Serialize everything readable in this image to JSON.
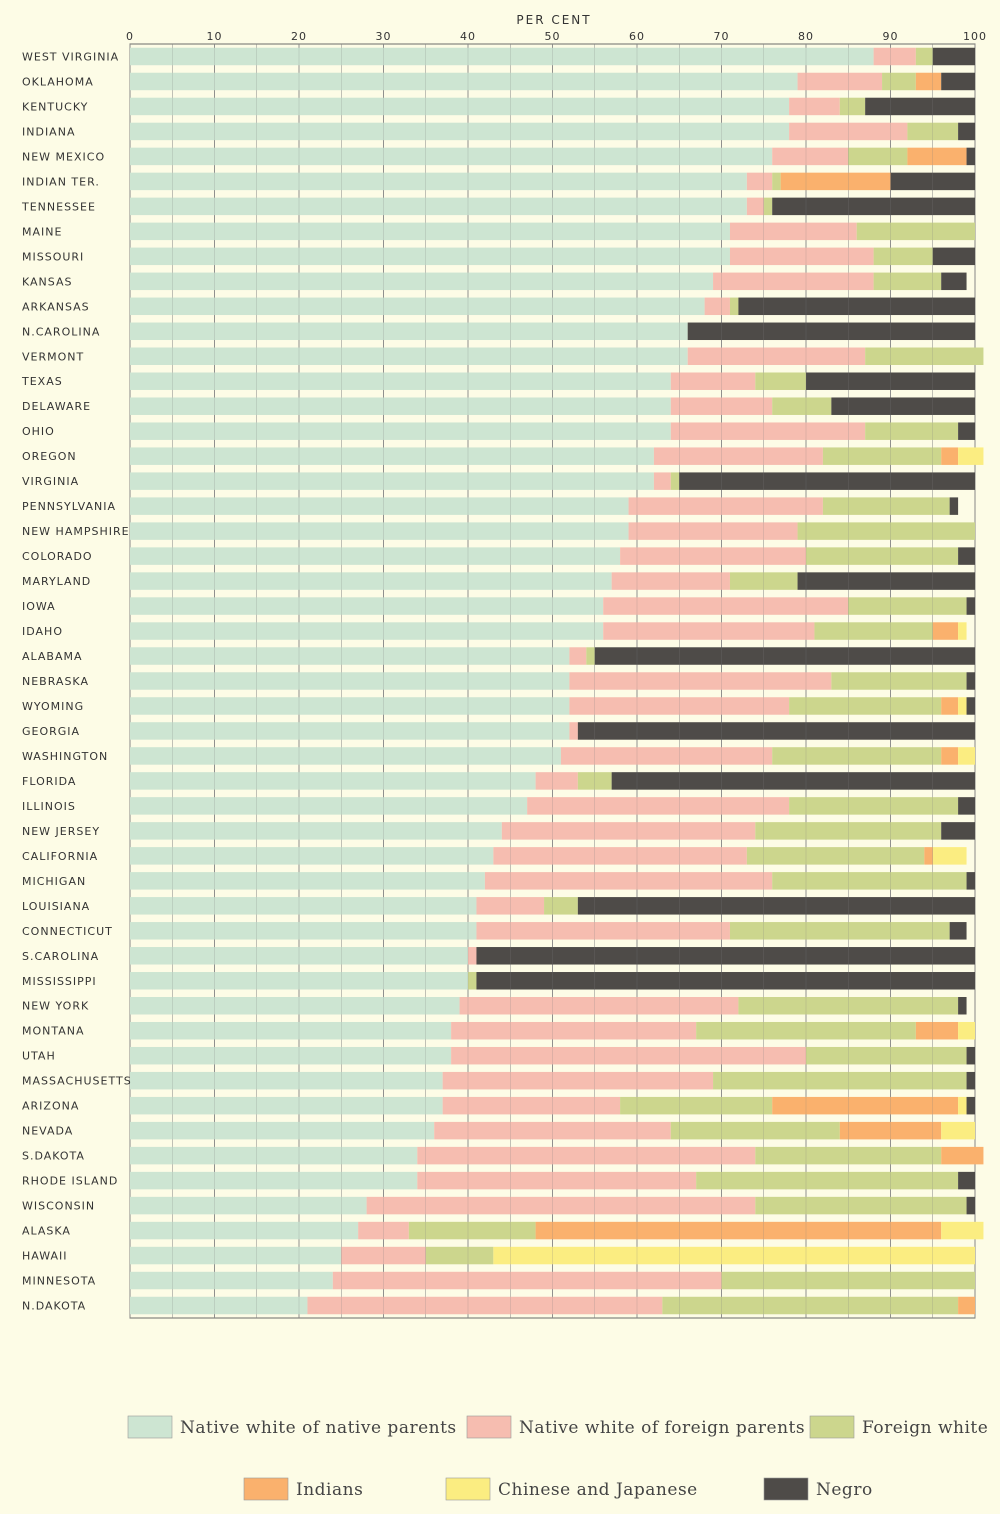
{
  "chart_data": {
    "type": "bar",
    "orientation": "horizontal",
    "stacked": true,
    "xlabel": "PER CENT",
    "xlim": [
      0,
      100
    ],
    "xticks": [
      "0",
      "10",
      "20",
      "30",
      "40",
      "50",
      "60",
      "70",
      "80",
      "90",
      "100"
    ],
    "grid": true,
    "legend_position": "bottom",
    "categories": [
      "WEST VIRGINIA",
      "OKLAHOMA",
      "KENTUCKY",
      "INDIANA",
      "NEW MEXICO",
      "INDIAN TER.",
      "TENNESSEE",
      "MAINE",
      "MISSOURI",
      "KANSAS",
      "ARKANSAS",
      "N.CAROLINA",
      "VERMONT",
      "TEXAS",
      "DELAWARE",
      "OHIO",
      "OREGON",
      "VIRGINIA",
      "PENNSYLVANIA",
      "NEW HAMPSHIRE",
      "COLORADO",
      "MARYLAND",
      "IOWA",
      "IDAHO",
      "ALABAMA",
      "NEBRASKA",
      "WYOMING",
      "GEORGIA",
      "WASHINGTON",
      "FLORIDA",
      "ILLINOIS",
      "NEW JERSEY",
      "CALIFORNIA",
      "MICHIGAN",
      "LOUISIANA",
      "CONNECTICUT",
      "S.CAROLINA",
      "MISSISSIPPI",
      "NEW YORK",
      "MONTANA",
      "UTAH",
      "MASSACHUSETTS",
      "ARIZONA",
      "NEVADA",
      "S.DAKOTA",
      "RHODE ISLAND",
      "WISCONSIN",
      "ALASKA",
      "HAWAII",
      "MINNESOTA",
      "N.DAKOTA"
    ],
    "series": [
      {
        "name": "Native white of native parents",
        "color": "#cde5d2",
        "values": [
          88,
          79,
          78,
          78,
          76,
          73,
          73,
          71,
          71,
          69,
          68,
          66,
          66,
          64,
          64,
          64,
          62,
          62,
          59,
          59,
          58,
          57,
          56,
          56,
          52,
          52,
          52,
          52,
          51,
          48,
          47,
          44,
          43,
          42,
          41,
          41,
          40,
          40,
          39,
          38,
          38,
          37,
          37,
          36,
          34,
          34,
          28,
          27,
          25,
          24,
          21
        ]
      },
      {
        "name": "Native white of foreign parents",
        "color": "#f6bdb0",
        "values": [
          5,
          10,
          6,
          14,
          9,
          3,
          2,
          15,
          17,
          19,
          3,
          0,
          21,
          10,
          12,
          23,
          20,
          2,
          23,
          20,
          22,
          14,
          29,
          25,
          2,
          31,
          26,
          1,
          25,
          5,
          31,
          30,
          30,
          34,
          8,
          30,
          1,
          0,
          33,
          29,
          42,
          32,
          21,
          28,
          40,
          33,
          46,
          6,
          10,
          46,
          42
        ]
      },
      {
        "name": "Foreign white",
        "color": "#ccd68d",
        "values": [
          2,
          4,
          3,
          6,
          7,
          1,
          1,
          14,
          7,
          8,
          1,
          0,
          14,
          6,
          7,
          11,
          14,
          1,
          15,
          21,
          18,
          8,
          14,
          14,
          1,
          16,
          18,
          0,
          20,
          4,
          20,
          22,
          21,
          23,
          4,
          26,
          0,
          1,
          26,
          26,
          19,
          30,
          18,
          20,
          22,
          31,
          25,
          15,
          8,
          30,
          35
        ]
      },
      {
        "name": "Indians",
        "color": "#fab16d",
        "values": [
          0,
          3,
          0,
          0,
          7,
          13,
          0,
          0,
          0,
          0,
          0,
          0,
          0,
          0,
          0,
          0,
          2,
          0,
          0,
          0,
          0,
          0,
          0,
          3,
          0,
          0,
          2,
          0,
          2,
          0,
          0,
          0,
          1,
          0,
          0,
          0,
          0,
          0,
          0,
          5,
          0,
          0,
          22,
          12,
          5,
          0,
          0,
          48,
          0,
          0,
          2
        ]
      },
      {
        "name": "Chinese and Japanese",
        "color": "#fbed81",
        "values": [
          0,
          0,
          0,
          0,
          0,
          0,
          0,
          0,
          0,
          0,
          0,
          0,
          0,
          0,
          0,
          0,
          3,
          0,
          0,
          0,
          0,
          0,
          0,
          1,
          0,
          0,
          1,
          0,
          2,
          0,
          0,
          0,
          4,
          0,
          0,
          0,
          0,
          0,
          0,
          2,
          0,
          0,
          1,
          4,
          0,
          0,
          0,
          5,
          57,
          0,
          0
        ]
      },
      {
        "name": "Negro",
        "color": "#4e4b48",
        "values": [
          5,
          4,
          13,
          2,
          1,
          10,
          24,
          0,
          5,
          3,
          28,
          34,
          0,
          20,
          17,
          2,
          0,
          35,
          1,
          0,
          2,
          21,
          1,
          0,
          45,
          1,
          1,
          47,
          0,
          43,
          2,
          4,
          0,
          1,
          47,
          2,
          59,
          59,
          1,
          0,
          1,
          1,
          1,
          0,
          0,
          2,
          1,
          0,
          0,
          0,
          0
        ]
      }
    ]
  }
}
